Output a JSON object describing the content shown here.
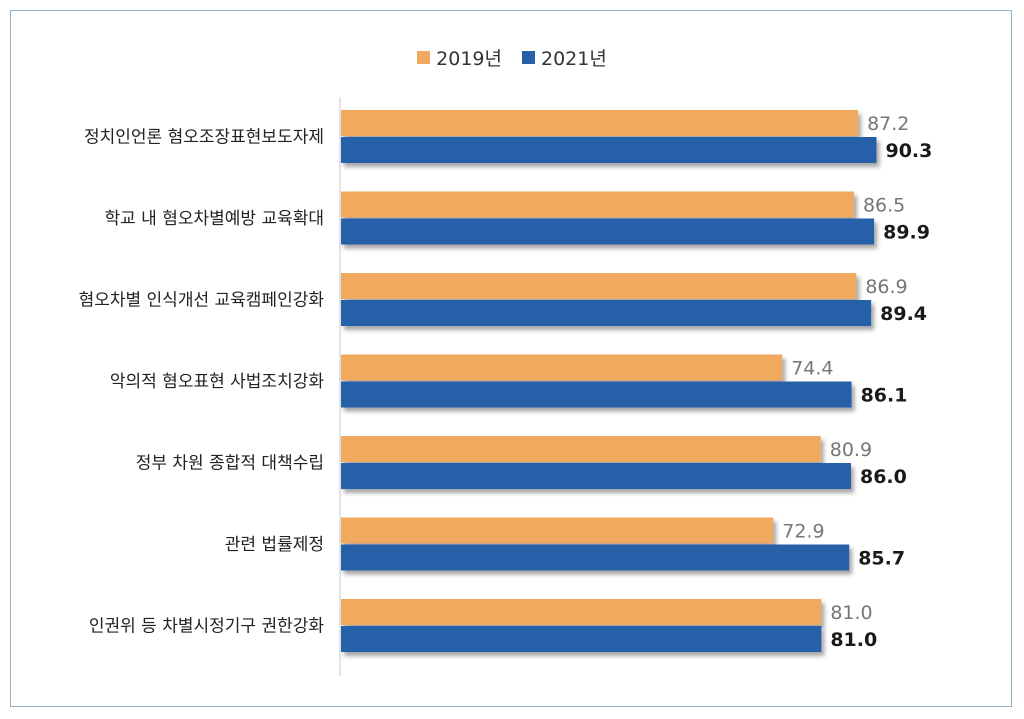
{
  "chart_data": {
    "type": "bar",
    "orientation": "horizontal",
    "categories": [
      "정치인언론 혐오조장표현보도자제",
      "학교 내 혐오차별예방 교육확대",
      "혐오차별 인식개선 교육캠페인강화",
      "악의적 혐오표현 사법조치강화",
      "정부 차원 종합적 대책수립",
      "관련 법률제정",
      "인권위 등 차별시정기구 권한강화"
    ],
    "series": [
      {
        "name": "2019년",
        "color": "#f0aa5f",
        "values": [
          87.2,
          86.5,
          86.9,
          74.4,
          80.9,
          72.9,
          81.0
        ]
      },
      {
        "name": "2021년",
        "color": "#2860a8",
        "values": [
          90.3,
          89.9,
          89.4,
          86.1,
          86.0,
          85.7,
          81.0
        ]
      }
    ],
    "xlim": [
      0,
      100
    ],
    "legend_position": "top-center",
    "grid": false
  }
}
